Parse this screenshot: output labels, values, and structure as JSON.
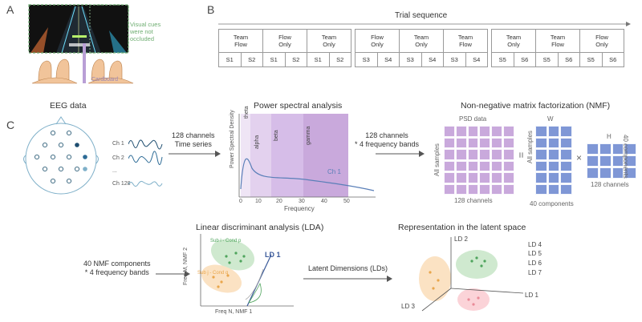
{
  "panels": {
    "a": "A",
    "b": "B",
    "c": "C"
  },
  "panel_a": {
    "visual_cues": "Visual cues\nwere not\noccluded",
    "cardboard": "Cardboard"
  },
  "panel_b": {
    "trial_sequence": "Trial sequence",
    "groups": [
      {
        "conditions": [
          "Team\nFlow",
          "Flow\nOnly",
          "Team\nOnly"
        ],
        "sessions": [
          "S1",
          "S2",
          "S1",
          "S2",
          "S1",
          "S2"
        ]
      },
      {
        "conditions": [
          "Flow\nOnly",
          "Team\nOnly",
          "Team\nFlow"
        ],
        "sessions": [
          "S3",
          "S4",
          "S3",
          "S4",
          "S3",
          "S4"
        ]
      },
      {
        "conditions": [
          "Team\nOnly",
          "Team\nFlow",
          "Flow\nOnly"
        ],
        "sessions": [
          "S5",
          "S6",
          "S5",
          "S6",
          "S5",
          "S6"
        ]
      }
    ]
  },
  "eeg": {
    "title": "EEG data",
    "channels": [
      "Ch 1",
      "Ch 2",
      "...",
      "Ch 128"
    ],
    "arrow_label": "128 channels\nTime series"
  },
  "psd": {
    "title": "Power spectral analysis",
    "ylabel": "Power Spectral Density",
    "xlabel": "Frequency",
    "bands": [
      "theta",
      "alpha",
      "beta",
      "gamma"
    ],
    "ticks": [
      "0",
      "10",
      "20",
      "30",
      "40",
      "50"
    ],
    "series_label": "Ch 1",
    "arrow_label": "128 channels\n* 4 frequency bands"
  },
  "nmf": {
    "title": "Non-negative matrix factorization (NMF)",
    "psd_label": "PSD data",
    "all_samples": "All samples",
    "equals": "=",
    "w_label": "W",
    "times": "×",
    "h_label": "H",
    "channels_128": "128 channels",
    "components_40": "40 components",
    "w_components": "40 components"
  },
  "lda": {
    "title": "Linear discriminant analysis (LDA)",
    "left_text": "40 NMF components\n* 4 frequency bands",
    "ylabel": "Freq M, NMF 2",
    "xlabel": "Freq N, NMF 1",
    "class1": "Sub i - Cond p",
    "class2": "Sub j - Cond q",
    "ld1": "LD 1",
    "arrow_label": "Latent Dimensions (LDs)"
  },
  "latent": {
    "title": "Representation in the latent space",
    "ld2": "LD 2",
    "ld1": "LD 1",
    "ld3": "LD 3",
    "more": [
      "LD 4",
      "LD 5",
      "LD 6",
      "LD 7"
    ]
  },
  "colors": {
    "psd_purple": "#c9a9dc",
    "nmf_blue": "#7f97d6",
    "green": "#93d19b",
    "orange": "#f6c98f",
    "pink": "#f6b8c0",
    "text_green": "#6fae72"
  }
}
